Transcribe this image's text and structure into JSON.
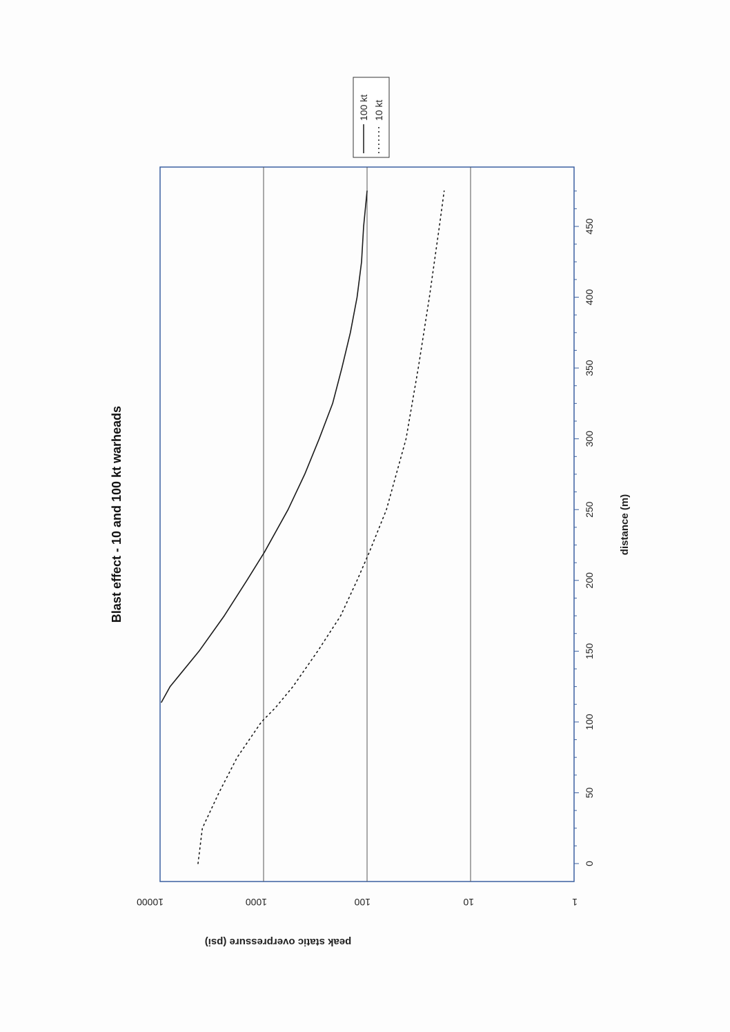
{
  "chart_data": {
    "type": "line",
    "title": "Blast effect - 10 and 100 kt warheads",
    "xlabel": "distance (m)",
    "ylabel": "peak static overpressure (psi)",
    "xlim": [
      -10,
      485
    ],
    "ylim": [
      1,
      10000
    ],
    "yscale": "log",
    "x_ticks": [
      0,
      50,
      100,
      150,
      200,
      250,
      300,
      350,
      400,
      450
    ],
    "y_ticks": [
      1,
      10,
      100,
      1000,
      10000
    ],
    "x_tick_labels": [
      "0",
      "50",
      "100",
      "150",
      "200",
      "250",
      "300",
      "350",
      "400",
      "450"
    ],
    "y_tick_labels": [
      "1",
      "10",
      "100",
      "1000",
      "10000"
    ],
    "grid": "horizontal major lines at each decade",
    "legend_position": "top-right, outside plot area",
    "series": [
      {
        "name": "100 kt",
        "style": "solid",
        "color": "#1a1a1a",
        "x": [
          114,
          125,
          150,
          175,
          200,
          220,
          250,
          275,
          300,
          325,
          350,
          375,
          400,
          425,
          430,
          450,
          475
        ],
        "y": [
          9700,
          8000,
          4200,
          2400,
          1450,
          980,
          580,
          400,
          290,
          215,
          175,
          145,
          125,
          113,
          112,
          108,
          100
        ]
      },
      {
        "name": "10 kt",
        "style": "dotted",
        "color": "#1a1a1a",
        "x": [
          0,
          25,
          50,
          75,
          100,
          110,
          125,
          150,
          175,
          200,
          220,
          250,
          300,
          350,
          400,
          450,
          475
        ],
        "y": [
          4300,
          3900,
          2700,
          1800,
          1050,
          770,
          520,
          300,
          180,
          125,
          95,
          65,
          42,
          32,
          25,
          20,
          18
        ]
      }
    ]
  }
}
